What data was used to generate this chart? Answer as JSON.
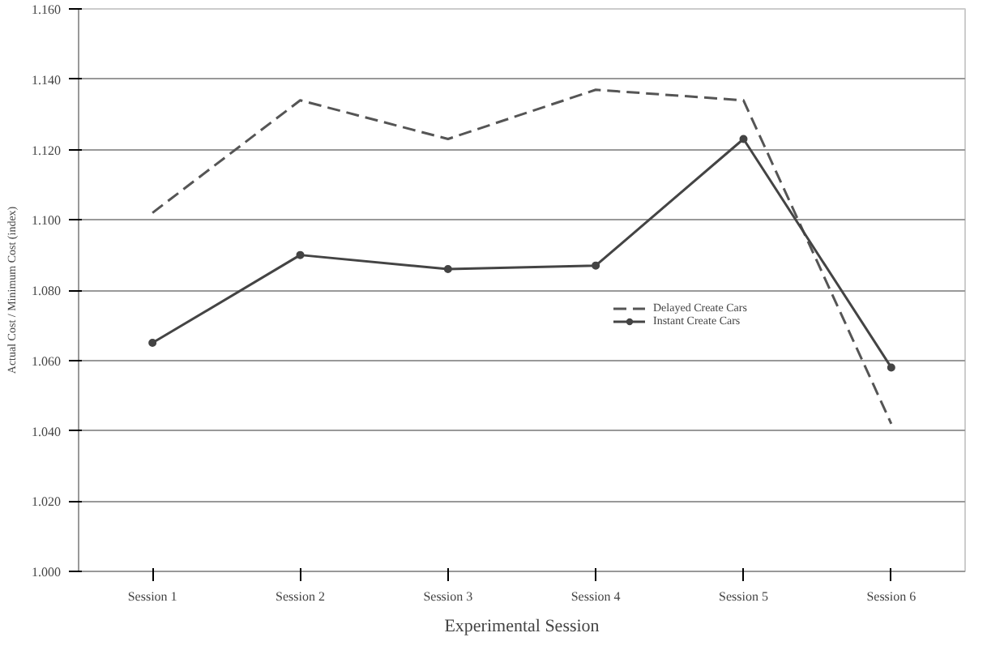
{
  "chart_data": {
    "type": "line",
    "xlabel": "Experimental Session",
    "ylabel": "Actual Cost / Minimum Cost (index)",
    "categories": [
      "Session 1",
      "Session 2",
      "Session 3",
      "Session 4",
      "Session 5",
      "Session 6"
    ],
    "series": [
      {
        "name": "Delayed Create Cars",
        "color": "#555555",
        "line_style": "dashed",
        "marker": "none",
        "values": [
          1.102,
          1.134,
          1.123,
          1.137,
          1.134,
          1.042
        ]
      },
      {
        "name": "Instant Create Cars",
        "color": "#444444",
        "line_style": "solid",
        "marker": "circle",
        "values": [
          1.065,
          1.09,
          1.086,
          1.087,
          1.123,
          1.058
        ]
      }
    ],
    "ylim": [
      1.0,
      1.16
    ],
    "yticks": [
      {
        "value": 1.0,
        "label": "1.000"
      },
      {
        "value": 1.02,
        "label": "1.020"
      },
      {
        "value": 1.04,
        "label": "1.040"
      },
      {
        "value": 1.06,
        "label": "1.060"
      },
      {
        "value": 1.08,
        "label": "1.080"
      },
      {
        "value": 1.1,
        "label": "1.100"
      },
      {
        "value": 1.12,
        "label": "1.120"
      },
      {
        "value": 1.14,
        "label": "1.140"
      },
      {
        "value": 1.16,
        "label": "1.160"
      }
    ],
    "grid": "y",
    "legend": "center right"
  }
}
